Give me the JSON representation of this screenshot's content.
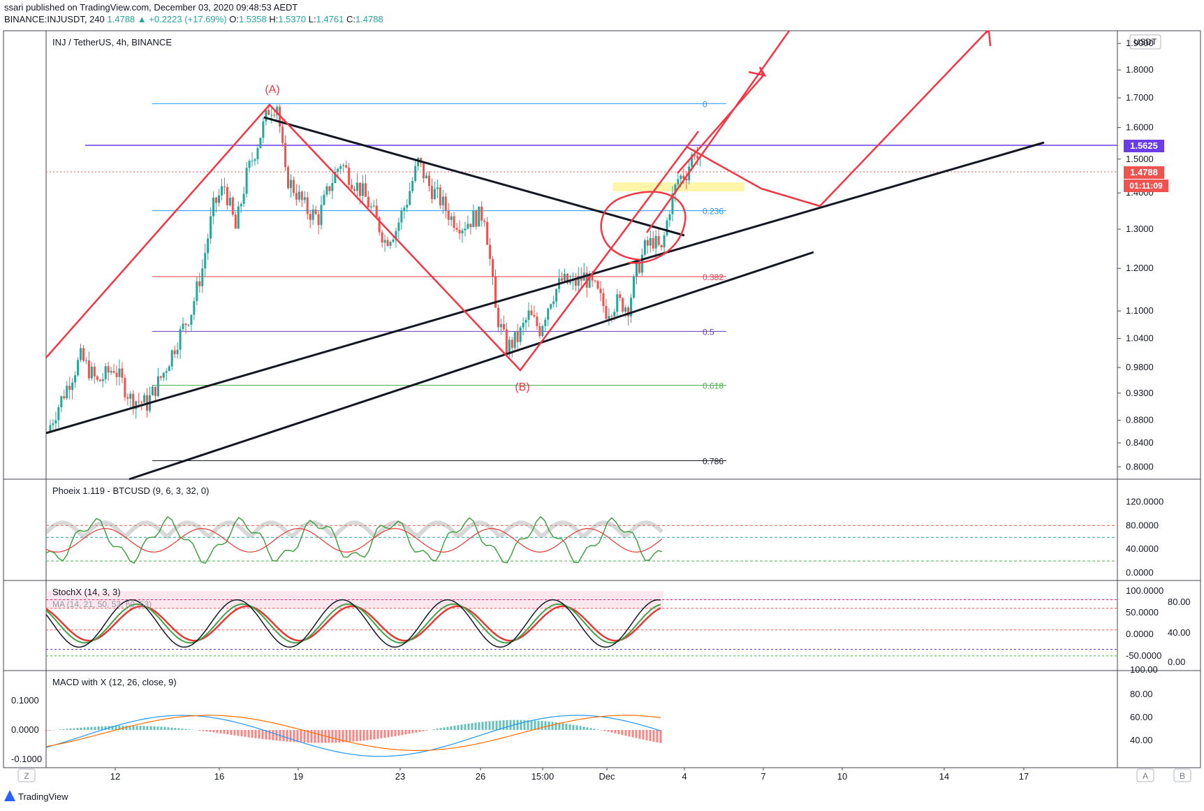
{
  "header": {
    "published_line": "ssari published on TradingView.com, December 03, 2020 09:48:53 AEDT",
    "symbol": "BINANCE:INJUSDT, 240",
    "last": "1.4788",
    "change": "▲ +0.2223 (+17.69%)",
    "o_label": "O:",
    "o": "1.5358",
    "h_label": "H:",
    "h": "1.5370",
    "l_label": "L:",
    "l": "1.4761",
    "c_label": "C:",
    "c": "1.4788"
  },
  "main_pane": {
    "legend": "INJ / TetherUS, 4h, BINANCE",
    "currency_button": "USDT",
    "price_ticks": [
      "1.9000",
      "1.8000",
      "1.7000",
      "1.6000",
      "1.5000",
      "1.4000",
      "1.3000",
      "1.2000",
      "1.1000",
      "1.0400",
      "0.9800",
      "0.9300",
      "0.8800",
      "0.8400",
      "0.8000"
    ],
    "hline_badge": "1.5625",
    "price_badge": "1.4788",
    "countdown_badge": "01:11:09",
    "wave_labels": {
      "A": "(A)",
      "B": "(B)"
    },
    "fib_labels": [
      {
        "label": "0",
        "color": "#2196f3"
      },
      {
        "label": "0.236",
        "color": "#2196f3"
      },
      {
        "label": "0.382",
        "color": "#f23645"
      },
      {
        "label": "0.5",
        "color": "#673ab7"
      },
      {
        "label": "0.618",
        "color": "#4caf50"
      },
      {
        "label": "0.786",
        "color": "#131722"
      }
    ]
  },
  "phoeix_pane": {
    "legend": "Phoeix 1.119 - BTCUSD (9, 6, 3, 32, 0)",
    "ticks": [
      "120.0000",
      "80.0000",
      "40.0000",
      "0.0000"
    ]
  },
  "stoch_pane": {
    "legend": "StochX (14, 3, 3)",
    "legend2": "MA (14, 21, 50, 53, 60, 53)",
    "ticks_right": [
      "100.0000",
      "50.0000",
      "0.0000",
      "-50.0000"
    ],
    "ticks_inner": [
      "80.00",
      "40.00",
      "0.00"
    ]
  },
  "macd_pane": {
    "legend": "MACD with X (12, 26, close, 9)",
    "ticks_left": [
      "0.1000",
      "0.0000",
      "-0.1000"
    ],
    "ticks_right": [
      "100.00",
      "80.00",
      "60.00",
      "40.00"
    ]
  },
  "time_axis": {
    "labels": [
      "12",
      "16",
      "19",
      "23",
      "26",
      "15:00",
      "Dec",
      "4",
      "7",
      "10",
      "14",
      "17"
    ],
    "z_button": "Z",
    "a_button": "A",
    "b_button": "B"
  },
  "footer": {
    "brand": "TradingView"
  },
  "colors": {
    "up": "#26a69a",
    "down": "#ef5350",
    "hline": "#6a3de8",
    "annotation": "#f23645"
  },
  "chart_data": {
    "type": "candlestick",
    "symbol": "INJ / TetherUS",
    "interval": "4h",
    "ylim": [
      0.78,
      1.95
    ],
    "y_scale": "log",
    "open": 1.5358,
    "high": 1.537,
    "low": 1.4761,
    "close": 1.4788,
    "horizontal_level": 1.5625,
    "fib_levels": [
      {
        "ratio": "0",
        "price": 1.68
      },
      {
        "ratio": "0.236",
        "price": 1.35
      },
      {
        "ratio": "0.382",
        "price": 1.18
      },
      {
        "ratio": "0.5",
        "price": 1.055
      },
      {
        "ratio": "0.618",
        "price": 0.945
      },
      {
        "ratio": "0.786",
        "price": 0.81
      }
    ],
    "close_path_approx": [
      [
        0,
        0.86
      ],
      [
        6,
        0.93
      ],
      [
        12,
        1.0
      ],
      [
        18,
        0.95
      ],
      [
        24,
        0.98
      ],
      [
        30,
        0.92
      ],
      [
        36,
        0.91
      ],
      [
        42,
        0.97
      ],
      [
        48,
        1.05
      ],
      [
        52,
        1.1
      ],
      [
        56,
        1.2
      ],
      [
        60,
        1.36
      ],
      [
        64,
        1.42
      ],
      [
        68,
        1.3
      ],
      [
        72,
        1.45
      ],
      [
        76,
        1.55
      ],
      [
        80,
        1.66
      ],
      [
        83,
        1.68
      ],
      [
        86,
        1.45
      ],
      [
        90,
        1.4
      ],
      [
        94,
        1.35
      ],
      [
        98,
        1.33
      ],
      [
        102,
        1.42
      ],
      [
        106,
        1.49
      ],
      [
        110,
        1.44
      ],
      [
        114,
        1.4
      ],
      [
        118,
        1.34
      ],
      [
        122,
        1.27
      ],
      [
        126,
        1.3
      ],
      [
        130,
        1.38
      ],
      [
        134,
        1.49
      ],
      [
        138,
        1.42
      ],
      [
        142,
        1.38
      ],
      [
        146,
        1.33
      ],
      [
        150,
        1.31
      ],
      [
        154,
        1.33
      ],
      [
        158,
        1.34
      ],
      [
        160,
        1.22
      ],
      [
        162,
        1.1
      ],
      [
        166,
        1.02
      ],
      [
        170,
        1.04
      ],
      [
        174,
        1.09
      ],
      [
        178,
        1.06
      ],
      [
        182,
        1.13
      ],
      [
        186,
        1.17
      ],
      [
        190,
        1.16
      ],
      [
        194,
        1.18
      ],
      [
        198,
        1.15
      ],
      [
        202,
        1.1
      ],
      [
        206,
        1.12
      ],
      [
        210,
        1.11
      ],
      [
        213,
        1.19
      ],
      [
        216,
        1.25
      ],
      [
        219,
        1.27
      ],
      [
        222,
        1.24
      ],
      [
        225,
        1.36
      ],
      [
        228,
        1.44
      ],
      [
        231,
        1.46
      ],
      [
        234,
        1.53
      ],
      [
        236,
        1.48
      ]
    ]
  }
}
